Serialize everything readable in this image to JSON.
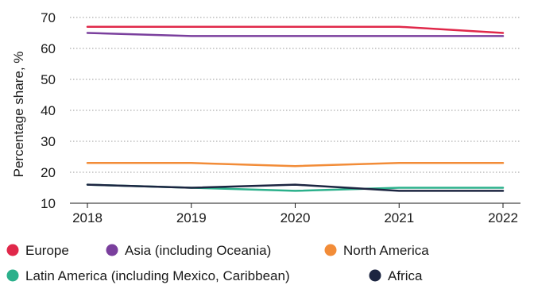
{
  "chart_data": {
    "type": "line",
    "title": "",
    "xlabel": "",
    "ylabel": "Percentage share, %",
    "x": [
      "2018",
      "2019",
      "2020",
      "2021",
      "2022"
    ],
    "yticks": [
      10,
      20,
      30,
      40,
      50,
      60,
      70
    ],
    "ylim": [
      10,
      70
    ],
    "grid": "horizontal dotted",
    "legend_position": "bottom",
    "series": [
      {
        "name": "Europe",
        "color": "#e0284a",
        "values": [
          67,
          67,
          67,
          67,
          65
        ]
      },
      {
        "name": "Asia (including Oceania)",
        "color": "#7a3f9d",
        "values": [
          65,
          64,
          64,
          64,
          64
        ]
      },
      {
        "name": "North America",
        "color": "#f28c38",
        "values": [
          23,
          23,
          22,
          23,
          23
        ]
      },
      {
        "name": "Latin America (including Mexico, Caribbean)",
        "color": "#2bb08b",
        "values": [
          16,
          15,
          14,
          15,
          15
        ]
      },
      {
        "name": "Africa",
        "color": "#1c2541",
        "values": [
          16,
          15,
          16,
          14,
          14
        ]
      }
    ]
  }
}
